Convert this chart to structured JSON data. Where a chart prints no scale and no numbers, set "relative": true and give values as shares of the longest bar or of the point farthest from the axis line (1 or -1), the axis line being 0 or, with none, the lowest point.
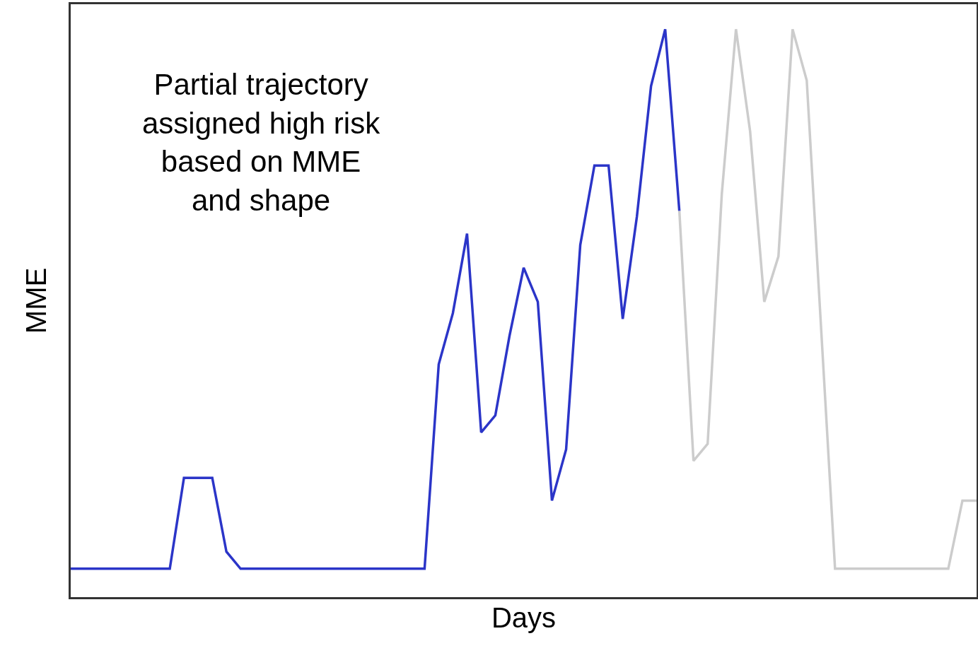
{
  "chart_data": {
    "type": "line",
    "relative": true,
    "xlabel": "Days",
    "ylabel": "MME",
    "annotations": [
      "Partial trajectory\nassigned high risk\nbased on MME\nand shape"
    ],
    "marker": "none",
    "line_style": "solid",
    "tick_labels": false,
    "categories": [
      null,
      null,
      null,
      null,
      null,
      null,
      null,
      null,
      null,
      null,
      null,
      null,
      null,
      null,
      null,
      null,
      null,
      null,
      null,
      null,
      null,
      null,
      null,
      null,
      null,
      null,
      null,
      null,
      null,
      null,
      null,
      null,
      null,
      null,
      null,
      null,
      null,
      null,
      null,
      null,
      null,
      null,
      null,
      null,
      null,
      null,
      null,
      null,
      null,
      null,
      null,
      null,
      null,
      null,
      null,
      null,
      null,
      null,
      null,
      null,
      null,
      null,
      null,
      null,
      null
    ],
    "series": [
      {
        "color": "#2b35c8",
        "values": [
          0.05,
          0.05,
          0.05,
          0.05,
          0.05,
          0.05,
          0.05,
          0.05,
          0.21,
          0.21,
          0.21,
          0.08,
          0.05,
          0.05,
          0.05,
          0.05,
          0.05,
          0.05,
          0.05,
          0.05,
          0.05,
          0.05,
          0.05,
          0.05,
          0.05,
          0.05,
          0.41,
          0.5,
          0.64,
          0.29,
          0.32,
          0.46,
          0.58,
          0.52,
          0.17,
          0.26,
          0.62,
          0.76,
          0.76,
          0.49,
          0.67,
          0.9,
          1.0,
          0.68,
          null,
          null,
          null,
          null,
          null,
          null,
          null,
          null,
          null,
          null,
          null,
          null,
          null,
          null,
          null,
          null,
          null,
          null,
          null,
          null,
          null
        ]
      },
      {
        "color": "#cccccc",
        "values": [
          null,
          null,
          null,
          null,
          null,
          null,
          null,
          null,
          null,
          null,
          null,
          null,
          null,
          null,
          null,
          null,
          null,
          null,
          null,
          null,
          null,
          null,
          null,
          null,
          null,
          null,
          null,
          null,
          null,
          null,
          null,
          null,
          null,
          null,
          null,
          null,
          null,
          null,
          null,
          null,
          null,
          null,
          null,
          0.68,
          0.24,
          0.27,
          0.71,
          1.0,
          0.82,
          0.52,
          0.6,
          1.0,
          0.91,
          0.48,
          0.05,
          0.05,
          0.05,
          0.05,
          0.05,
          0.05,
          0.05,
          0.05,
          0.05,
          0.17,
          0.17
        ]
      }
    ]
  }
}
